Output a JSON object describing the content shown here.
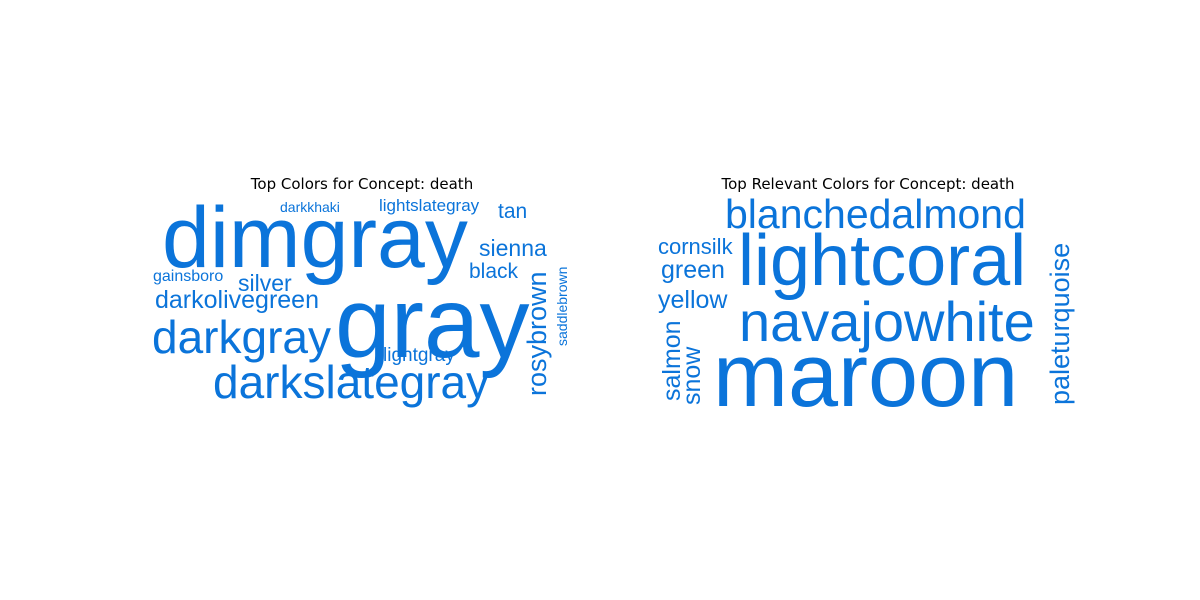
{
  "chart_data": [
    {
      "type": "wordcloud",
      "title": "Top Colors for Concept: death",
      "color": "#0b74da",
      "words": [
        {
          "text": "dimgray",
          "weight": 1.0,
          "orientation": "horizontal"
        },
        {
          "text": "gray",
          "weight": 1.0,
          "orientation": "horizontal"
        },
        {
          "text": "darkslategray",
          "weight": 0.5,
          "orientation": "horizontal"
        },
        {
          "text": "darkgray",
          "weight": 0.5,
          "orientation": "horizontal"
        },
        {
          "text": "darkolivegreen",
          "weight": 0.3,
          "orientation": "horizontal"
        },
        {
          "text": "rosybrown",
          "weight": 0.3,
          "orientation": "vertical"
        },
        {
          "text": "sienna",
          "weight": 0.25,
          "orientation": "horizontal"
        },
        {
          "text": "silver",
          "weight": 0.25,
          "orientation": "horizontal"
        },
        {
          "text": "tan",
          "weight": 0.23,
          "orientation": "horizontal"
        },
        {
          "text": "black",
          "weight": 0.22,
          "orientation": "horizontal"
        },
        {
          "text": "lightgray",
          "weight": 0.2,
          "orientation": "horizontal"
        },
        {
          "text": "lightslategray",
          "weight": 0.18,
          "orientation": "horizontal"
        },
        {
          "text": "gainsboro",
          "weight": 0.15,
          "orientation": "horizontal"
        },
        {
          "text": "darkkhaki",
          "weight": 0.14,
          "orientation": "horizontal"
        },
        {
          "text": "saddlebrown",
          "weight": 0.13,
          "orientation": "vertical"
        }
      ]
    },
    {
      "type": "wordcloud",
      "title": "Top Relevant Colors for Concept: death",
      "color": "#0b74da",
      "words": [
        {
          "text": "maroon",
          "weight": 1.0,
          "orientation": "horizontal"
        },
        {
          "text": "lightcoral",
          "weight": 0.85,
          "orientation": "horizontal"
        },
        {
          "text": "navajowhite",
          "weight": 0.65,
          "orientation": "horizontal"
        },
        {
          "text": "blanchedalmond",
          "weight": 0.5,
          "orientation": "horizontal"
        },
        {
          "text": "paleturquoise",
          "weight": 0.3,
          "orientation": "vertical"
        },
        {
          "text": "yellow",
          "weight": 0.3,
          "orientation": "horizontal"
        },
        {
          "text": "green",
          "weight": 0.3,
          "orientation": "horizontal"
        },
        {
          "text": "salmon",
          "weight": 0.3,
          "orientation": "vertical"
        },
        {
          "text": "snow",
          "weight": 0.28,
          "orientation": "vertical"
        },
        {
          "text": "cornsilk",
          "weight": 0.25,
          "orientation": "horizontal"
        }
      ]
    }
  ]
}
